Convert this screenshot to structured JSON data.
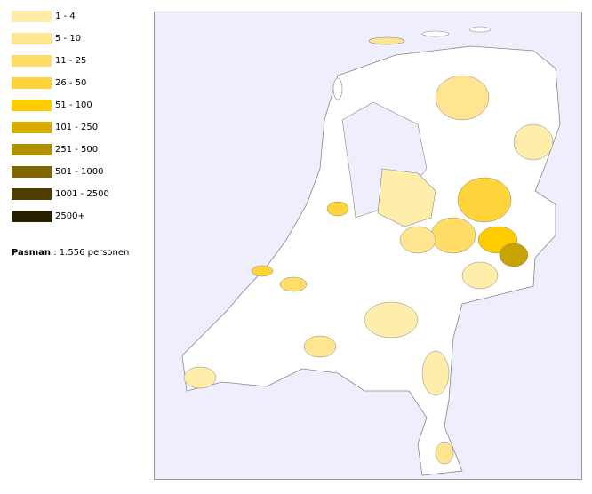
{
  "legend": {
    "items": [
      {
        "label": "1 - 4",
        "color": "#ffeeaa"
      },
      {
        "label": "5 - 10",
        "color": "#ffe58f"
      },
      {
        "label": "11 - 25",
        "color": "#ffdd66"
      },
      {
        "label": "26 - 50",
        "color": "#ffd43b"
      },
      {
        "label": "51 - 100",
        "color": "#ffcc00"
      },
      {
        "label": "101 - 250",
        "color": "#d9ad00"
      },
      {
        "label": "251 - 500",
        "color": "#b39000"
      },
      {
        "label": "501 - 1000",
        "color": "#806600"
      },
      {
        "label": "1001 - 2500",
        "color": "#4d3d00"
      },
      {
        "label": "2500+",
        "color": "#262000"
      }
    ]
  },
  "summary": {
    "name": "Pasman",
    "text": ": 1.556 personen"
  }
}
